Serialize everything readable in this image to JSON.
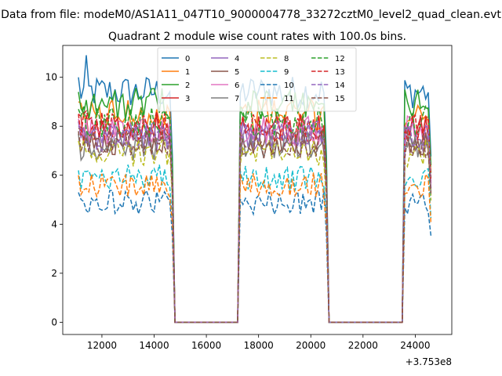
{
  "suptitle": "Data from file: modeM0/AS1A11_047T10_9000004778_33272cztM0_level2_quad_clean.evt",
  "chart_data": {
    "type": "line",
    "title": "Quadrant 2 module wise count rates with 100.0s bins.",
    "xlabel": "",
    "ylabel": "",
    "x_offset_label": "+3.753e8",
    "xlim": [
      10500,
      25400
    ],
    "ylim": [
      -0.5,
      11.3
    ],
    "xticks": [
      12000,
      14000,
      16000,
      18000,
      20000,
      22000,
      24000
    ],
    "xtick_labels": [
      "12000",
      "14000",
      "16000",
      "18000",
      "20000",
      "22000",
      "24000"
    ],
    "yticks": [
      0,
      2,
      4,
      6,
      8,
      10
    ],
    "ytick_labels": [
      "0",
      "2",
      "4",
      "6",
      "8",
      "10"
    ],
    "legend_position": "upper center",
    "legend_columns": 4,
    "segments": [
      {
        "start": 11100,
        "end": 14700
      },
      {
        "start": 17250,
        "end": 20600
      },
      {
        "start": 23550,
        "end": 24600
      }
    ],
    "series": [
      {
        "name": "0",
        "color": "#1f77b4",
        "dash": "solid",
        "level": 9.4,
        "first": 10.0,
        "spike": 10.9
      },
      {
        "name": "1",
        "color": "#ff7f0e",
        "dash": "solid",
        "level": 8.5,
        "first": 9.0,
        "spike": 9.5
      },
      {
        "name": "2",
        "color": "#2ca02c",
        "dash": "solid",
        "level": 8.9,
        "first": 9.4,
        "spike": 9.7
      },
      {
        "name": "3",
        "color": "#d62728",
        "dash": "solid",
        "level": 7.9,
        "first": 8.5,
        "spike": 8.8
      },
      {
        "name": "4",
        "color": "#9467bd",
        "dash": "solid",
        "level": 7.6,
        "first": 8.2,
        "spike": 8.6
      },
      {
        "name": "5",
        "color": "#8c564b",
        "dash": "solid",
        "level": 7.4,
        "first": 7.9,
        "spike": 8.2
      },
      {
        "name": "6",
        "color": "#e377c2",
        "dash": "solid",
        "level": 7.8,
        "first": 8.3,
        "spike": 8.7
      },
      {
        "name": "7",
        "color": "#7f7f7f",
        "dash": "solid",
        "level": 7.2,
        "first": 7.7,
        "spike": 8.0
      },
      {
        "name": "8",
        "color": "#bcbd22",
        "dash": "dashed",
        "level": 6.9,
        "first": 7.4,
        "spike": 7.7
      },
      {
        "name": "9",
        "color": "#17becf",
        "dash": "dashed",
        "level": 5.9,
        "first": 6.2,
        "spike": 6.5
      },
      {
        "name": "10",
        "color": "#1f77b4",
        "dash": "dashed",
        "level": 4.9,
        "first": 5.3,
        "spike": 5.6
      },
      {
        "name": "11",
        "color": "#ff7f0e",
        "dash": "dashed",
        "level": 5.6,
        "first": 6.0,
        "spike": 6.3
      },
      {
        "name": "12",
        "color": "#2ca02c",
        "dash": "dashed",
        "level": 8.2,
        "first": 8.7,
        "spike": 9.0
      },
      {
        "name": "13",
        "color": "#d62728",
        "dash": "dashed",
        "level": 8.0,
        "first": 8.5,
        "spike": 8.8
      },
      {
        "name": "14",
        "color": "#9467bd",
        "dash": "dashed",
        "level": 7.6,
        "first": 8.0,
        "spike": 8.3
      },
      {
        "name": "15",
        "color": "#8c564b",
        "dash": "dashed",
        "level": 7.3,
        "first": 7.8,
        "spike": 8.1
      }
    ]
  }
}
